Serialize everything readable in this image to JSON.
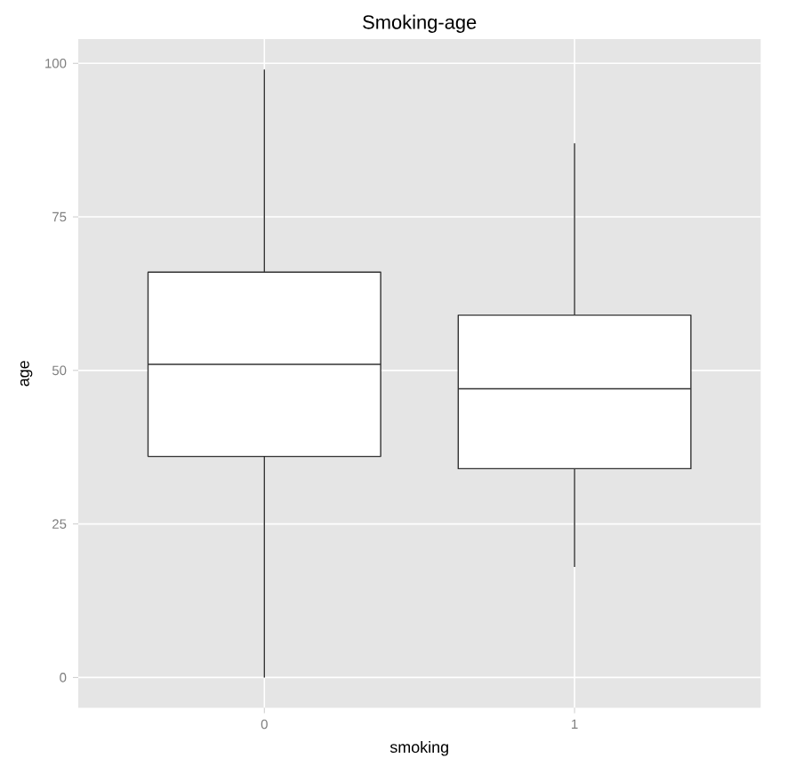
{
  "chart_data": {
    "type": "box",
    "title": "Smoking-age",
    "xlabel": "smoking",
    "ylabel": "age",
    "categories": [
      "0",
      "1"
    ],
    "boxes": [
      {
        "low": 0,
        "q1": 36,
        "median": 51,
        "q3": 66,
        "high": 99
      },
      {
        "low": 18,
        "q1": 34,
        "median": 47,
        "q3": 59,
        "high": 87
      }
    ],
    "ylim": [
      -4.95,
      103.95
    ],
    "yticks": [
      0,
      25,
      50,
      75,
      100
    ],
    "grid": true
  }
}
